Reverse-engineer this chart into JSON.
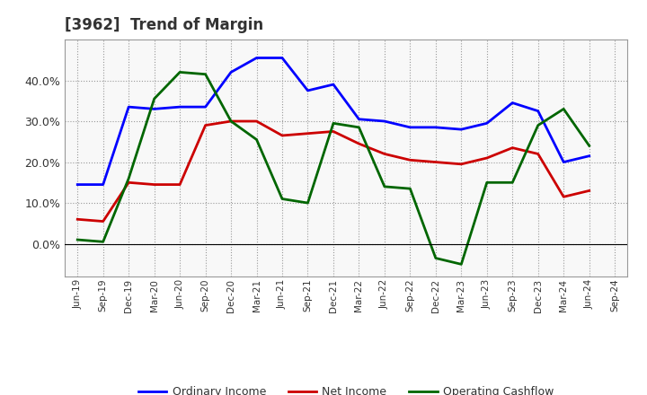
{
  "title": "[3962]  Trend of Margin",
  "labels": [
    "Jun-19",
    "Sep-19",
    "Dec-19",
    "Mar-20",
    "Jun-20",
    "Sep-20",
    "Dec-20",
    "Mar-21",
    "Jun-21",
    "Sep-21",
    "Dec-21",
    "Mar-22",
    "Jun-22",
    "Sep-22",
    "Dec-22",
    "Mar-23",
    "Jun-23",
    "Sep-23",
    "Dec-23",
    "Mar-24",
    "Jun-24",
    "Sep-24"
  ],
  "ordinary_income": [
    14.5,
    14.5,
    33.5,
    33.0,
    33.5,
    33.5,
    42.0,
    45.5,
    45.5,
    37.5,
    39.0,
    30.5,
    30.0,
    28.5,
    28.5,
    28.0,
    29.5,
    34.5,
    32.5,
    20.0,
    21.5,
    null
  ],
  "net_income": [
    6.0,
    5.5,
    15.0,
    14.5,
    14.5,
    29.0,
    30.0,
    30.0,
    26.5,
    27.0,
    27.5,
    24.5,
    22.0,
    20.5,
    20.0,
    19.5,
    21.0,
    23.5,
    22.0,
    11.5,
    13.0,
    null
  ],
  "operating_cashflow": [
    1.0,
    0.5,
    16.0,
    35.5,
    42.0,
    41.5,
    30.0,
    25.5,
    11.0,
    10.0,
    29.5,
    28.5,
    14.0,
    13.5,
    -3.5,
    -5.0,
    15.0,
    15.0,
    29.0,
    33.0,
    24.0,
    null
  ],
  "ylim": [
    -8,
    50
  ],
  "yticks": [
    0,
    10,
    20,
    30,
    40
  ],
  "line_color_oi": "#0000FF",
  "line_color_ni": "#CC0000",
  "line_color_ocf": "#006600",
  "background_color": "#FFFFFF",
  "plot_bg_color": "#F8F8F8",
  "grid_color": "#999999",
  "title_color": "#333333",
  "legend_labels": [
    "Ordinary Income",
    "Net Income",
    "Operating Cashflow"
  ]
}
